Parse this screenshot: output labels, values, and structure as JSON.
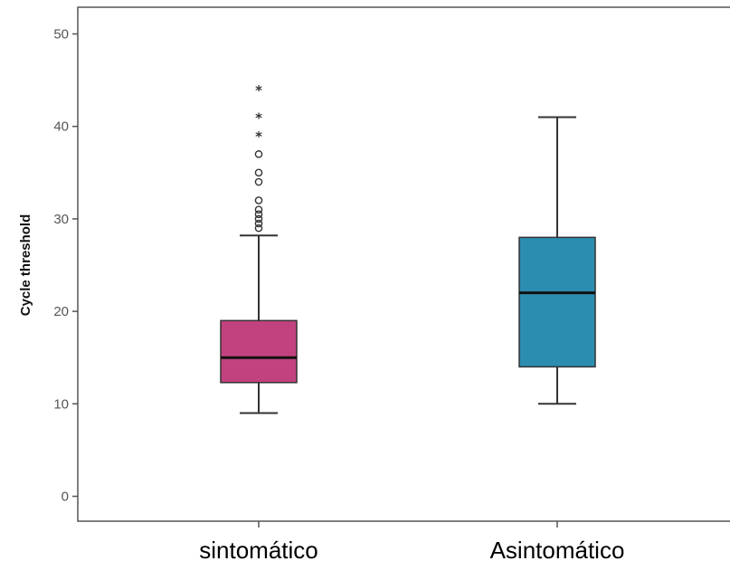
{
  "chart_data": {
    "type": "boxplot",
    "title": "",
    "xlabel": "",
    "ylabel": "Cycle threshold",
    "ylim": [
      -2,
      52
    ],
    "yticks": [
      0,
      10,
      20,
      30,
      40,
      50
    ],
    "ytick_labels": [
      "0",
      "10",
      "20",
      "30",
      "40",
      "50"
    ],
    "grid": false,
    "legend": "none",
    "categories": [
      "sintomático",
      "Asintomático"
    ],
    "series": [
      {
        "category": "sintomático",
        "color": "#C2427F",
        "whisker_low": 9,
        "q1": 12.3,
        "median": 15,
        "q3": 19,
        "whisker_high": 28.2,
        "outliers_circle": [
          29,
          29.5,
          30,
          30.5,
          31,
          32,
          34,
          35,
          37
        ],
        "outliers_star": [
          39,
          41,
          44
        ]
      },
      {
        "category": "Asintomático",
        "color": "#2B8DAF",
        "whisker_low": 10,
        "q1": 14,
        "median": 22,
        "q3": 28,
        "whisker_high": 41,
        "outliers_circle": [],
        "outliers_star": []
      }
    ]
  }
}
